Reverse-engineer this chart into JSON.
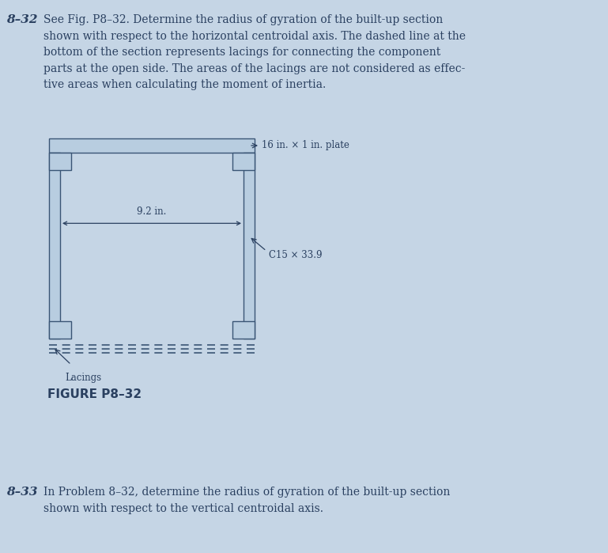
{
  "bg_color": "#c5d5e5",
  "text_color": "#2a4060",
  "fig_width": 7.69,
  "fig_height": 6.99,
  "problem_832_label": "8–32",
  "problem_832_text": "See Fig. P8–32. Determine the radius of gyration of the built-up section\nshown with respect to the horizontal centroidal axis. The dashed line at the\nbottom of the section represents lacings for connecting the component\nparts at the open side. The areas of the lacings are not considered as effec-\ntive areas when calculating the moment of inertia.",
  "problem_833_label": "8–33",
  "problem_833_text": "In Problem 8–32, determine the radius of gyration of the built-up section\nshown with respect to the vertical centroidal axis.",
  "figure_label": "FIGURE P8–32",
  "annotation_plate": "16 in. × 1 in. plate",
  "annotation_92": "9.2 in.",
  "annotation_c15": "C15 × 33.9",
  "annotation_lacings": "Lacings",
  "shape_fill": "#b8cde0",
  "shape_edge": "#3a5575",
  "dashed_color": "#3a5575",
  "lw": 1.0
}
